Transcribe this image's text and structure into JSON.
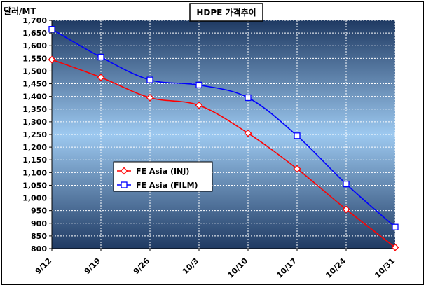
{
  "chart_data": {
    "type": "line",
    "title": "HDPE 가격추이",
    "ylabel": "달러/MT",
    "xlabel": "",
    "categories": [
      "9/12",
      "9/19",
      "9/26",
      "10/3",
      "10/10",
      "10/17",
      "10/24",
      "10/31"
    ],
    "ylim": [
      800,
      1700
    ],
    "ytick_step": 50,
    "grid": true,
    "legend_position": "left-center",
    "series": [
      {
        "name": "FE Asia (INJ)",
        "color": "#ff0000",
        "marker": "diamond",
        "values": [
          1545,
          1475,
          1395,
          1365,
          1255,
          1115,
          955,
          805
        ]
      },
      {
        "name": "FE Asia (FILM)",
        "color": "#0000ff",
        "marker": "square",
        "values": [
          1665,
          1555,
          1465,
          1445,
          1395,
          1245,
          1055,
          885
        ]
      }
    ],
    "background_gradient": [
      "#1f3a63",
      "#9dc9f0",
      "#1f3a63"
    ]
  }
}
